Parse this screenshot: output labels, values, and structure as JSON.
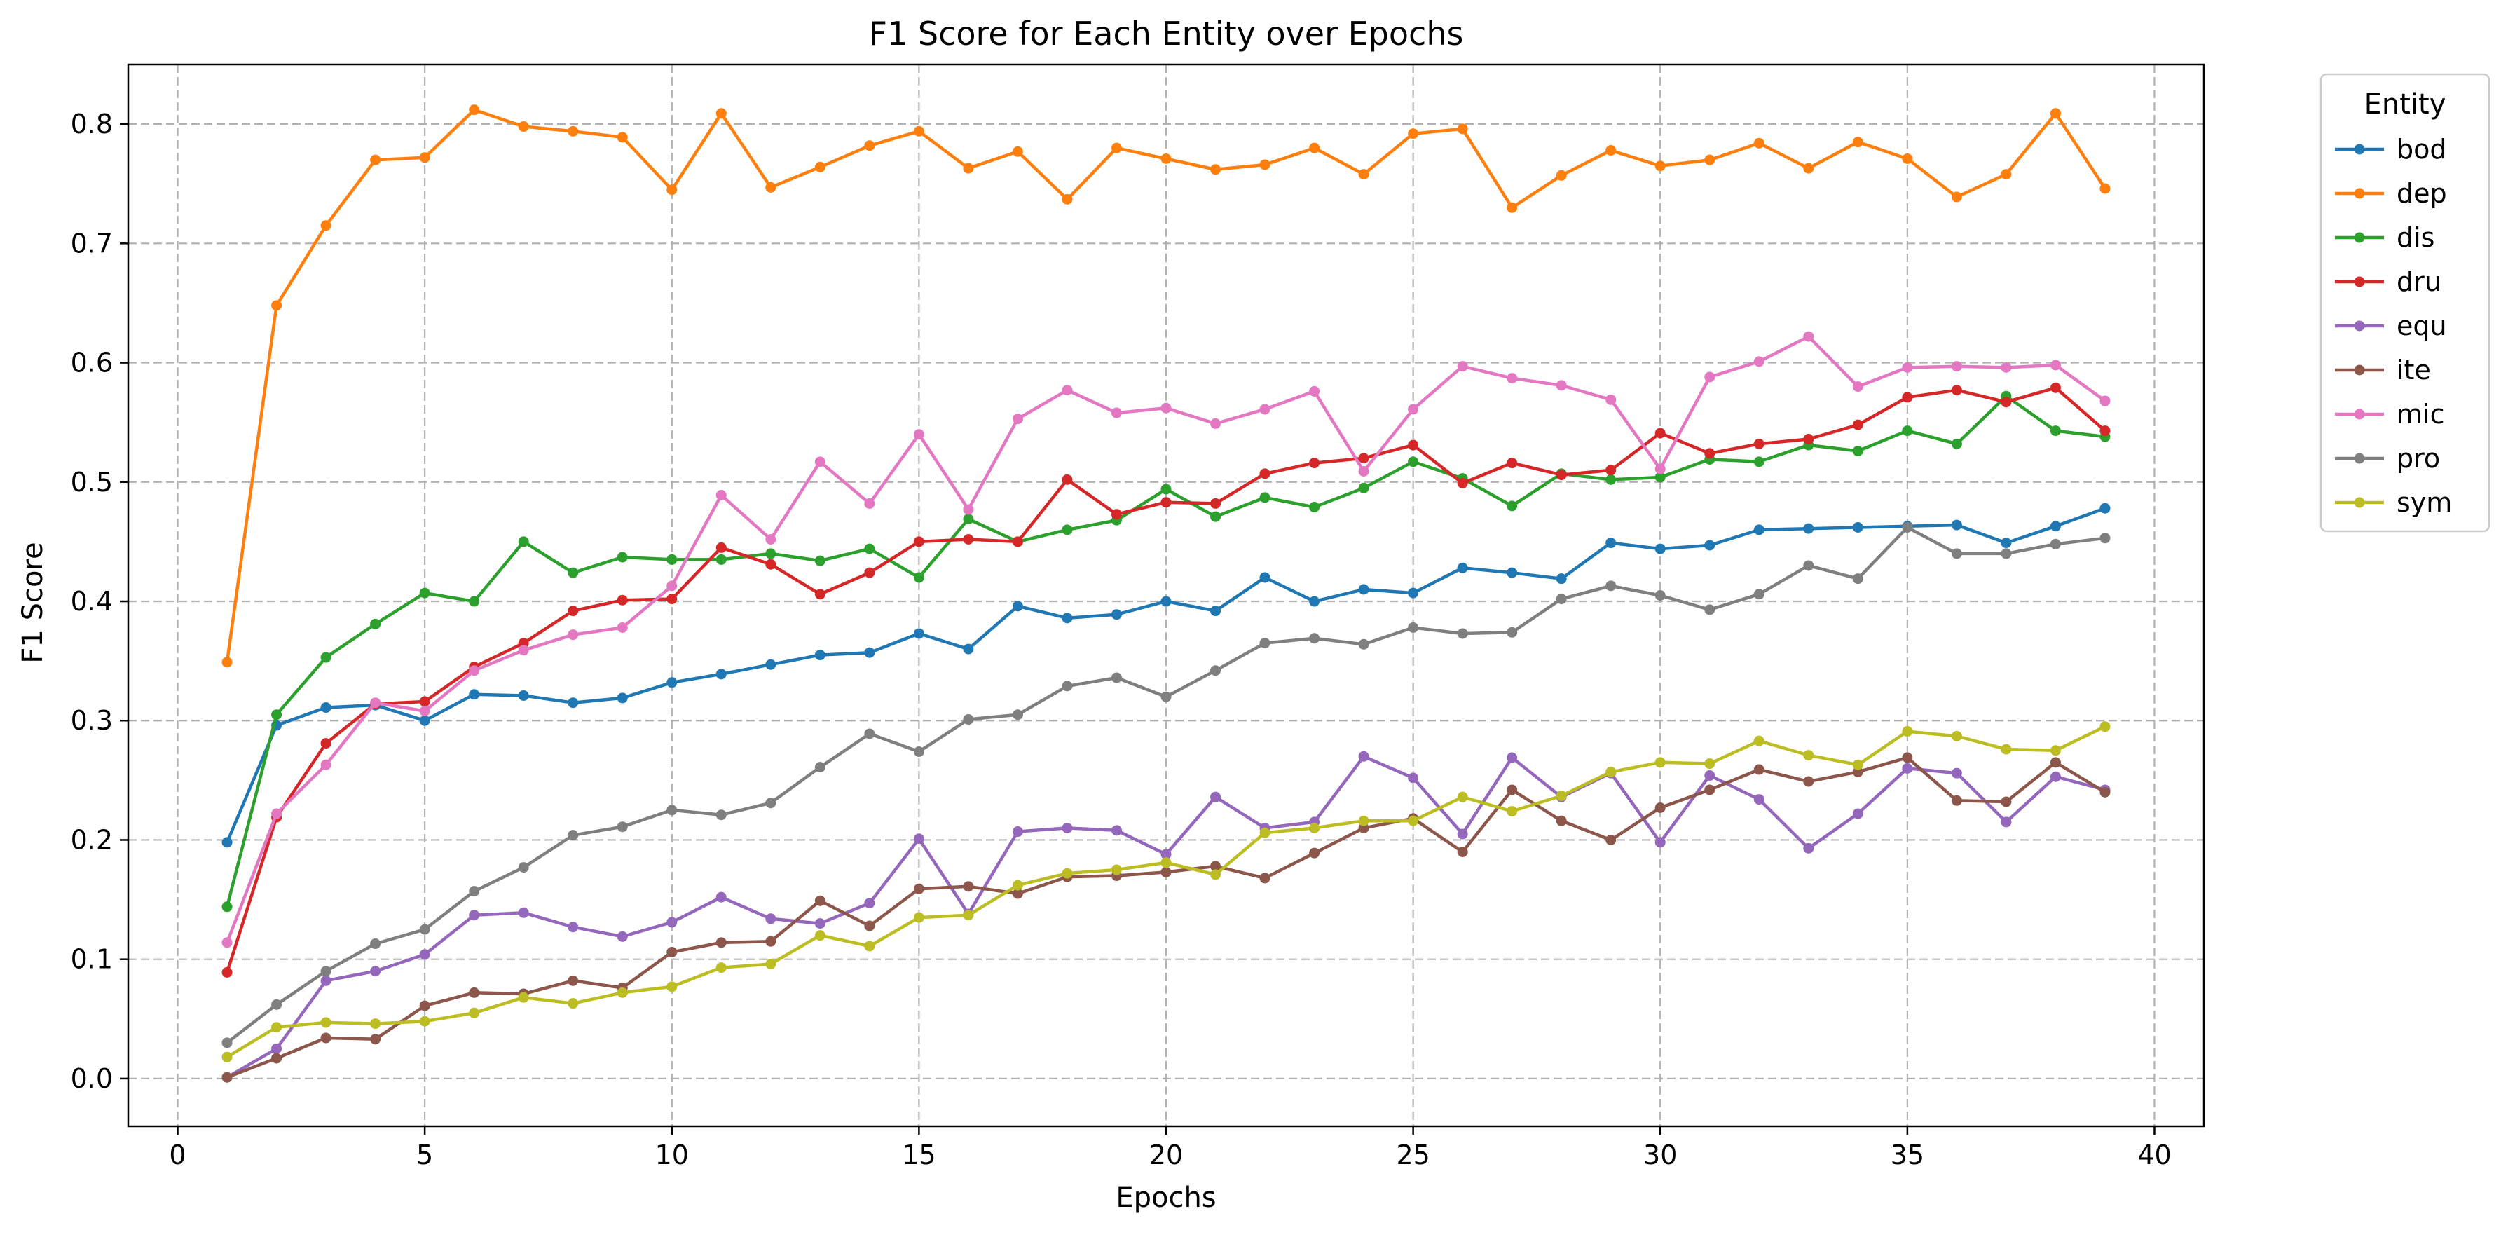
{
  "chart_data": {
    "type": "line",
    "title": "F1 Score for Each Entity over Epochs",
    "xlabel": "Epochs",
    "ylabel": "F1 Score",
    "xlim": [
      -1,
      41
    ],
    "ylim": [
      -0.04,
      0.85
    ],
    "xticks": [
      0,
      5,
      10,
      15,
      20,
      25,
      30,
      35,
      40
    ],
    "yticks": [
      0.0,
      0.1,
      0.2,
      0.3,
      0.4,
      0.5,
      0.6,
      0.7,
      0.8
    ],
    "xtick_labels": [
      "0",
      "5",
      "10",
      "15",
      "20",
      "25",
      "30",
      "35",
      "40"
    ],
    "ytick_labels": [
      "0.0",
      "0.1",
      "0.2",
      "0.3",
      "0.4",
      "0.5",
      "0.6",
      "0.7",
      "0.8"
    ],
    "grid": true,
    "legend_title": "Entity",
    "legend_position": "outside-top-right",
    "x": [
      1,
      2,
      3,
      4,
      5,
      6,
      7,
      8,
      9,
      10,
      11,
      12,
      13,
      14,
      15,
      16,
      17,
      18,
      19,
      20,
      21,
      22,
      23,
      24,
      25,
      26,
      27,
      28,
      29,
      30,
      31,
      32,
      33,
      34,
      35,
      36,
      37,
      38,
      39
    ],
    "series": [
      {
        "name": "bod",
        "color": "#1f77b4",
        "values": [
          0.198,
          0.296,
          0.311,
          0.313,
          0.3,
          0.322,
          0.321,
          0.315,
          0.319,
          0.332,
          0.339,
          0.347,
          0.355,
          0.357,
          0.373,
          0.36,
          0.396,
          0.386,
          0.389,
          0.4,
          0.392,
          0.42,
          0.4,
          0.41,
          0.407,
          0.428,
          0.424,
          0.419,
          0.449,
          0.444,
          0.447,
          0.46,
          0.461,
          0.462,
          0.463,
          0.464,
          0.449,
          0.463,
          0.478
        ]
      },
      {
        "name": "dep",
        "color": "#ff7f0e",
        "values": [
          0.349,
          0.648,
          0.715,
          0.77,
          0.772,
          0.812,
          0.798,
          0.794,
          0.789,
          0.745,
          0.809,
          0.747,
          0.764,
          0.782,
          0.794,
          0.763,
          0.777,
          0.737,
          0.78,
          0.771,
          0.762,
          0.766,
          0.78,
          0.758,
          0.792,
          0.796,
          0.73,
          0.757,
          0.778,
          0.765,
          0.77,
          0.784,
          0.763,
          0.785,
          0.771,
          0.739,
          0.758,
          0.809,
          0.746
        ]
      },
      {
        "name": "dis",
        "color": "#2ca02c",
        "values": [
          0.144,
          0.305,
          0.353,
          0.381,
          0.407,
          0.4,
          0.45,
          0.424,
          0.437,
          0.435,
          0.435,
          0.44,
          0.434,
          0.444,
          0.42,
          0.469,
          0.45,
          0.46,
          0.468,
          0.494,
          0.471,
          0.487,
          0.479,
          0.495,
          0.517,
          0.503,
          0.48,
          0.507,
          0.502,
          0.504,
          0.519,
          0.517,
          0.531,
          0.526,
          0.543,
          0.532,
          0.572,
          0.543,
          0.538
        ]
      },
      {
        "name": "dru",
        "color": "#d62728",
        "values": [
          0.089,
          0.219,
          0.281,
          0.314,
          0.316,
          0.345,
          0.365,
          0.392,
          0.401,
          0.402,
          0.445,
          0.431,
          0.406,
          0.424,
          0.45,
          0.452,
          0.45,
          0.502,
          0.473,
          0.483,
          0.482,
          0.507,
          0.516,
          0.52,
          0.531,
          0.499,
          0.516,
          0.506,
          0.51,
          0.541,
          0.524,
          0.532,
          0.536,
          0.548,
          0.571,
          0.577,
          0.567,
          0.579,
          0.543
        ]
      },
      {
        "name": "equ",
        "color": "#9467bd",
        "values": [
          0.001,
          0.025,
          0.082,
          0.09,
          0.104,
          0.137,
          0.139,
          0.127,
          0.119,
          0.131,
          0.152,
          0.134,
          0.13,
          0.147,
          0.201,
          0.138,
          0.207,
          0.21,
          0.208,
          0.188,
          0.236,
          0.21,
          0.215,
          0.27,
          0.252,
          0.205,
          0.269,
          0.236,
          0.256,
          0.198,
          0.254,
          0.234,
          0.193,
          0.222,
          0.26,
          0.256,
          0.215,
          0.253,
          0.242
        ]
      },
      {
        "name": "ite",
        "color": "#8c564b",
        "values": [
          0.001,
          0.017,
          0.034,
          0.033,
          0.061,
          0.072,
          0.071,
          0.082,
          0.076,
          0.106,
          0.114,
          0.115,
          0.149,
          0.128,
          0.159,
          0.161,
          0.155,
          0.169,
          0.17,
          0.173,
          0.178,
          0.168,
          0.189,
          0.21,
          0.218,
          0.19,
          0.242,
          0.216,
          0.2,
          0.227,
          0.242,
          0.259,
          0.249,
          0.257,
          0.269,
          0.233,
          0.232,
          0.265,
          0.24
        ]
      },
      {
        "name": "mic",
        "color": "#e377c2",
        "values": [
          0.114,
          0.222,
          0.263,
          0.315,
          0.308,
          0.342,
          0.359,
          0.372,
          0.378,
          0.413,
          0.489,
          0.452,
          0.517,
          0.482,
          0.54,
          0.477,
          0.553,
          0.577,
          0.558,
          0.562,
          0.549,
          0.561,
          0.576,
          0.509,
          0.561,
          0.597,
          0.587,
          0.581,
          0.569,
          0.511,
          0.588,
          0.601,
          0.622,
          0.58,
          0.596,
          0.597,
          0.596,
          0.598,
          0.568
        ]
      },
      {
        "name": "pro",
        "color": "#7f7f7f",
        "values": [
          0.03,
          0.062,
          0.09,
          0.113,
          0.125,
          0.157,
          0.177,
          0.204,
          0.211,
          0.225,
          0.221,
          0.231,
          0.261,
          0.289,
          0.274,
          0.301,
          0.305,
          0.329,
          0.336,
          0.32,
          0.342,
          0.365,
          0.369,
          0.364,
          0.378,
          0.373,
          0.374,
          0.402,
          0.413,
          0.405,
          0.393,
          0.406,
          0.43,
          0.419,
          0.462,
          0.44,
          0.44,
          0.448,
          0.453
        ]
      },
      {
        "name": "sym",
        "color": "#bcbd22",
        "values": [
          0.018,
          0.043,
          0.047,
          0.046,
          0.048,
          0.055,
          0.068,
          0.063,
          0.072,
          0.077,
          0.093,
          0.096,
          0.12,
          0.111,
          0.135,
          0.137,
          0.162,
          0.172,
          0.175,
          0.181,
          0.171,
          0.206,
          0.21,
          0.216,
          0.216,
          0.236,
          0.224,
          0.237,
          0.257,
          0.265,
          0.264,
          0.283,
          0.271,
          0.263,
          0.291,
          0.287,
          0.276,
          0.275,
          0.295
        ]
      }
    ]
  }
}
